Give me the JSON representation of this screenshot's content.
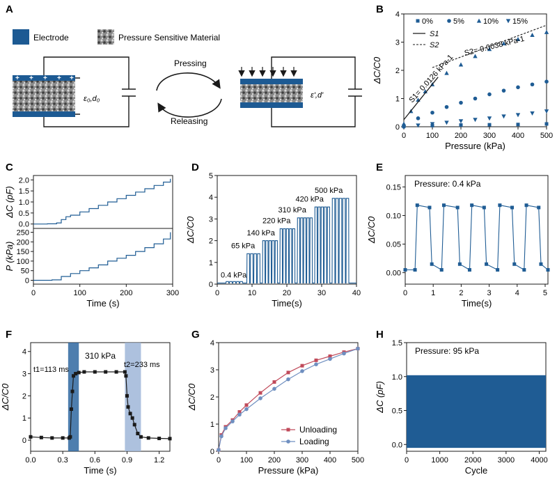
{
  "panels": {
    "A": {
      "letter": "A",
      "legend_electrode": "Electrode",
      "legend_material": "Pressure Sensitive Material",
      "pressing": "Pressing",
      "releasing": "Releasing",
      "label_left": "ε₀,d₀",
      "label_right": "ε',d'"
    },
    "B": {
      "letter": "B"
    },
    "C": {
      "letter": "C"
    },
    "D": {
      "letter": "D"
    },
    "E": {
      "letter": "E"
    },
    "F": {
      "letter": "F"
    },
    "G": {
      "letter": "G"
    },
    "H": {
      "letter": "H"
    }
  },
  "colors": {
    "blue": "#1f5c94",
    "light_blue": "#6f8fc0",
    "electrode": "#1d5a93",
    "red": "#c04a5a",
    "band_dark": "#2f67a0",
    "band_light": "#9fb6d8"
  },
  "chart_data": [
    {
      "id": "B",
      "type": "scatter",
      "xlabel": "Pressure (kPa)",
      "ylabel": "ΔC/C0",
      "xlim": [
        0,
        500
      ],
      "ylim": [
        0,
        4
      ],
      "xticks": [
        "0",
        "100",
        "200",
        "300",
        "400",
        "500"
      ],
      "yticks": [
        "0",
        "1",
        "2",
        "3",
        "4"
      ],
      "legend": [
        "0%",
        "5%",
        "10%",
        "15%",
        "S1",
        "S2"
      ],
      "annotations": [
        "S1= 0.0126 kPa-1",
        "S2= 0.0038 kPa-1"
      ],
      "series": [
        {
          "name": "0%",
          "points": [
            [
              0,
              0.02
            ],
            [
              100,
              0.04
            ],
            [
              200,
              0.06
            ],
            [
              300,
              0.07
            ],
            [
              400,
              0.08
            ],
            [
              500,
              0.1
            ]
          ]
        },
        {
          "name": "5%",
          "points": [
            [
              0,
              0.0
            ],
            [
              50,
              0.3
            ],
            [
              100,
              0.5
            ],
            [
              150,
              0.7
            ],
            [
              200,
              0.85
            ],
            [
              250,
              1.0
            ],
            [
              300,
              1.15
            ],
            [
              350,
              1.28
            ],
            [
              400,
              1.4
            ],
            [
              450,
              1.5
            ],
            [
              500,
              1.6
            ]
          ]
        },
        {
          "name": "10%",
          "points": [
            [
              0,
              0.1
            ],
            [
              25,
              0.55
            ],
            [
              50,
              0.95
            ],
            [
              75,
              1.25
            ],
            [
              100,
              1.5
            ],
            [
              150,
              1.9
            ],
            [
              200,
              2.2
            ],
            [
              250,
              2.5
            ],
            [
              300,
              2.75
            ],
            [
              350,
              2.95
            ],
            [
              400,
              3.1
            ],
            [
              450,
              3.25
            ],
            [
              500,
              3.35
            ]
          ]
        },
        {
          "name": "15%",
          "points": [
            [
              0,
              0.0
            ],
            [
              50,
              0.05
            ],
            [
              100,
              0.1
            ],
            [
              150,
              0.15
            ],
            [
              200,
              0.2
            ],
            [
              250,
              0.25
            ],
            [
              300,
              0.3
            ],
            [
              350,
              0.37
            ],
            [
              400,
              0.42
            ],
            [
              450,
              0.48
            ],
            [
              500,
              0.55
            ]
          ]
        }
      ],
      "fits": [
        {
          "name": "S1",
          "points": [
            [
              0,
              0.25
            ],
            [
              120,
              1.76
            ]
          ]
        },
        {
          "name": "S2",
          "points": [
            [
              100,
              2.1
            ],
            [
              500,
              3.6
            ]
          ]
        }
      ]
    },
    {
      "id": "C_top",
      "type": "line",
      "xlabel": "",
      "ylabel": "ΔC (pF)",
      "xlim": [
        0,
        300
      ],
      "ylim": [
        -0.2,
        2.2
      ],
      "yticks": [
        "0.0",
        "0.5",
        "1.0",
        "1.5",
        "2.0"
      ],
      "steps": [
        [
          0,
          0
        ],
        [
          30,
          0.01
        ],
        [
          50,
          0.05
        ],
        [
          60,
          0.2
        ],
        [
          70,
          0.33
        ],
        [
          80,
          0.4
        ],
        [
          100,
          0.55
        ],
        [
          120,
          0.7
        ],
        [
          140,
          0.85
        ],
        [
          160,
          1.0
        ],
        [
          180,
          1.15
        ],
        [
          200,
          1.3
        ],
        [
          220,
          1.45
        ],
        [
          240,
          1.6
        ],
        [
          260,
          1.75
        ],
        [
          280,
          1.9
        ],
        [
          295,
          2.05
        ]
      ]
    },
    {
      "id": "C_bottom",
      "type": "line",
      "xlabel": "Time (s)",
      "ylabel": "P (kPa)",
      "xlim": [
        0,
        300
      ],
      "ylim": [
        -20,
        270
      ],
      "xticks": [
        "0",
        "100",
        "200",
        "300"
      ],
      "yticks": [
        "0",
        "50",
        "100",
        "150",
        "200",
        "250"
      ],
      "steps": [
        [
          0,
          0
        ],
        [
          40,
          2
        ],
        [
          60,
          20
        ],
        [
          80,
          35
        ],
        [
          100,
          50
        ],
        [
          120,
          65
        ],
        [
          140,
          80
        ],
        [
          160,
          100
        ],
        [
          180,
          115
        ],
        [
          200,
          130
        ],
        [
          220,
          150
        ],
        [
          240,
          170
        ],
        [
          260,
          190
        ],
        [
          280,
          215
        ],
        [
          295,
          250
        ]
      ]
    },
    {
      "id": "D",
      "type": "line",
      "xlabel": "Time(s)",
      "ylabel": "ΔC/C0",
      "xlim": [
        0,
        40
      ],
      "ylim": [
        0,
        5
      ],
      "xticks": [
        "0",
        "10",
        "20",
        "30",
        "40"
      ],
      "yticks": [
        "0",
        "1",
        "2",
        "3",
        "4",
        "5"
      ],
      "annotations": [
        "0.4 kPa",
        "65 kPa",
        "140 kPa",
        "220 kPa",
        "310 kPa",
        "420 kPa",
        "500 kPa"
      ],
      "groups": [
        {
          "label": "0.4 kPa",
          "start": 2.5,
          "end": 7.5,
          "level": 0.12,
          "n": 5
        },
        {
          "label": "65 kPa",
          "start": 8.5,
          "end": 12.5,
          "level": 1.4,
          "n": 4
        },
        {
          "label": "140 kPa",
          "start": 13,
          "end": 17.5,
          "level": 2.0,
          "n": 5
        },
        {
          "label": "220 kPa",
          "start": 18,
          "end": 22.5,
          "level": 2.55,
          "n": 5
        },
        {
          "label": "310 kPa",
          "start": 23,
          "end": 27.5,
          "level": 3.05,
          "n": 5
        },
        {
          "label": "420 kPa",
          "start": 28,
          "end": 32.5,
          "level": 3.55,
          "n": 5
        },
        {
          "label": "500 kPa",
          "start": 33,
          "end": 38,
          "level": 3.95,
          "n": 5
        }
      ]
    },
    {
      "id": "E",
      "type": "line",
      "xlabel": "Time(s)",
      "ylabel": "ΔC/C0",
      "xlim": [
        0,
        5.1
      ],
      "ylim": [
        -0.02,
        0.17
      ],
      "xticks": [
        "0",
        "1",
        "2",
        "3",
        "4",
        "5"
      ],
      "yticks": [
        "0.00",
        "0.05",
        "0.10",
        "0.15"
      ],
      "annotation": "Pressure: 0.4 kPa",
      "pulses": [
        [
          0.35,
          0.95
        ],
        [
          1.3,
          1.95
        ],
        [
          2.3,
          2.9
        ],
        [
          3.3,
          3.9
        ],
        [
          4.25,
          4.85
        ]
      ],
      "high": 0.118,
      "low": 0.005
    },
    {
      "id": "F",
      "type": "line",
      "xlabel": "Time (s)",
      "ylabel": "ΔC/C0",
      "xlim": [
        0,
        1.3
      ],
      "ylim": [
        -0.5,
        4.4
      ],
      "xticks": [
        "0.0",
        "0.3",
        "0.6",
        "0.9",
        "1.2"
      ],
      "yticks": [
        "0",
        "1",
        "2",
        "3",
        "4"
      ],
      "annotations": [
        "t1=113 ms",
        "310 kPa",
        "t2=233 ms"
      ],
      "bands": [
        [
          0.35,
          0.45
        ],
        [
          0.88,
          1.03
        ]
      ],
      "points": [
        [
          0,
          0.15
        ],
        [
          0.1,
          0.12
        ],
        [
          0.2,
          0.1
        ],
        [
          0.3,
          0.1
        ],
        [
          0.36,
          0.1
        ],
        [
          0.37,
          0.15
        ],
        [
          0.38,
          1.4
        ],
        [
          0.39,
          2.2
        ],
        [
          0.4,
          2.9
        ],
        [
          0.42,
          3.0
        ],
        [
          0.45,
          3.05
        ],
        [
          0.5,
          3.08
        ],
        [
          0.6,
          3.08
        ],
        [
          0.7,
          3.08
        ],
        [
          0.8,
          3.08
        ],
        [
          0.88,
          3.08
        ],
        [
          0.89,
          2.9
        ],
        [
          0.9,
          2.0
        ],
        [
          0.91,
          1.5
        ],
        [
          0.93,
          1.2
        ],
        [
          0.95,
          1.0
        ],
        [
          0.97,
          0.7
        ],
        [
          1.0,
          0.3
        ],
        [
          1.03,
          0.15
        ],
        [
          1.1,
          0.1
        ],
        [
          1.2,
          0.08
        ],
        [
          1.3,
          0.07
        ]
      ]
    },
    {
      "id": "G",
      "type": "line",
      "xlabel": "Pressure (kPa)",
      "ylabel": "ΔC/C0",
      "xlim": [
        0,
        500
      ],
      "ylim": [
        0,
        4
      ],
      "xticks": [
        "0",
        "100",
        "200",
        "300",
        "400",
        "500"
      ],
      "yticks": [
        "0",
        "1",
        "2",
        "3",
        "4"
      ],
      "legend": [
        "Unloading",
        "Loading"
      ],
      "series": [
        {
          "name": "Unloading",
          "points": [
            [
              0,
              0.05
            ],
            [
              10,
              0.6
            ],
            [
              25,
              0.9
            ],
            [
              50,
              1.15
            ],
            [
              75,
              1.45
            ],
            [
              100,
              1.7
            ],
            [
              150,
              2.15
            ],
            [
              200,
              2.55
            ],
            [
              250,
              2.9
            ],
            [
              300,
              3.15
            ],
            [
              350,
              3.35
            ],
            [
              400,
              3.5
            ],
            [
              450,
              3.65
            ],
            [
              500,
              3.78
            ]
          ]
        },
        {
          "name": "Loading",
          "points": [
            [
              0,
              0.05
            ],
            [
              10,
              0.55
            ],
            [
              25,
              0.85
            ],
            [
              50,
              1.1
            ],
            [
              75,
              1.35
            ],
            [
              100,
              1.55
            ],
            [
              150,
              1.95
            ],
            [
              200,
              2.3
            ],
            [
              250,
              2.65
            ],
            [
              300,
              2.95
            ],
            [
              350,
              3.2
            ],
            [
              400,
              3.4
            ],
            [
              450,
              3.6
            ],
            [
              500,
              3.78
            ]
          ]
        }
      ]
    },
    {
      "id": "H",
      "type": "area",
      "xlabel": "Cycle",
      "ylabel": "ΔC (pF)",
      "xlim": [
        0,
        4200
      ],
      "ylim": [
        -0.1,
        1.5
      ],
      "xticks": [
        "0",
        "1000",
        "2000",
        "3000",
        "4000"
      ],
      "yticks": [
        "0.0",
        "0.5",
        "1.0",
        "1.5"
      ],
      "annotation": "Pressure: 95 kPa",
      "band_low": -0.05,
      "band_high": 1.02
    }
  ]
}
